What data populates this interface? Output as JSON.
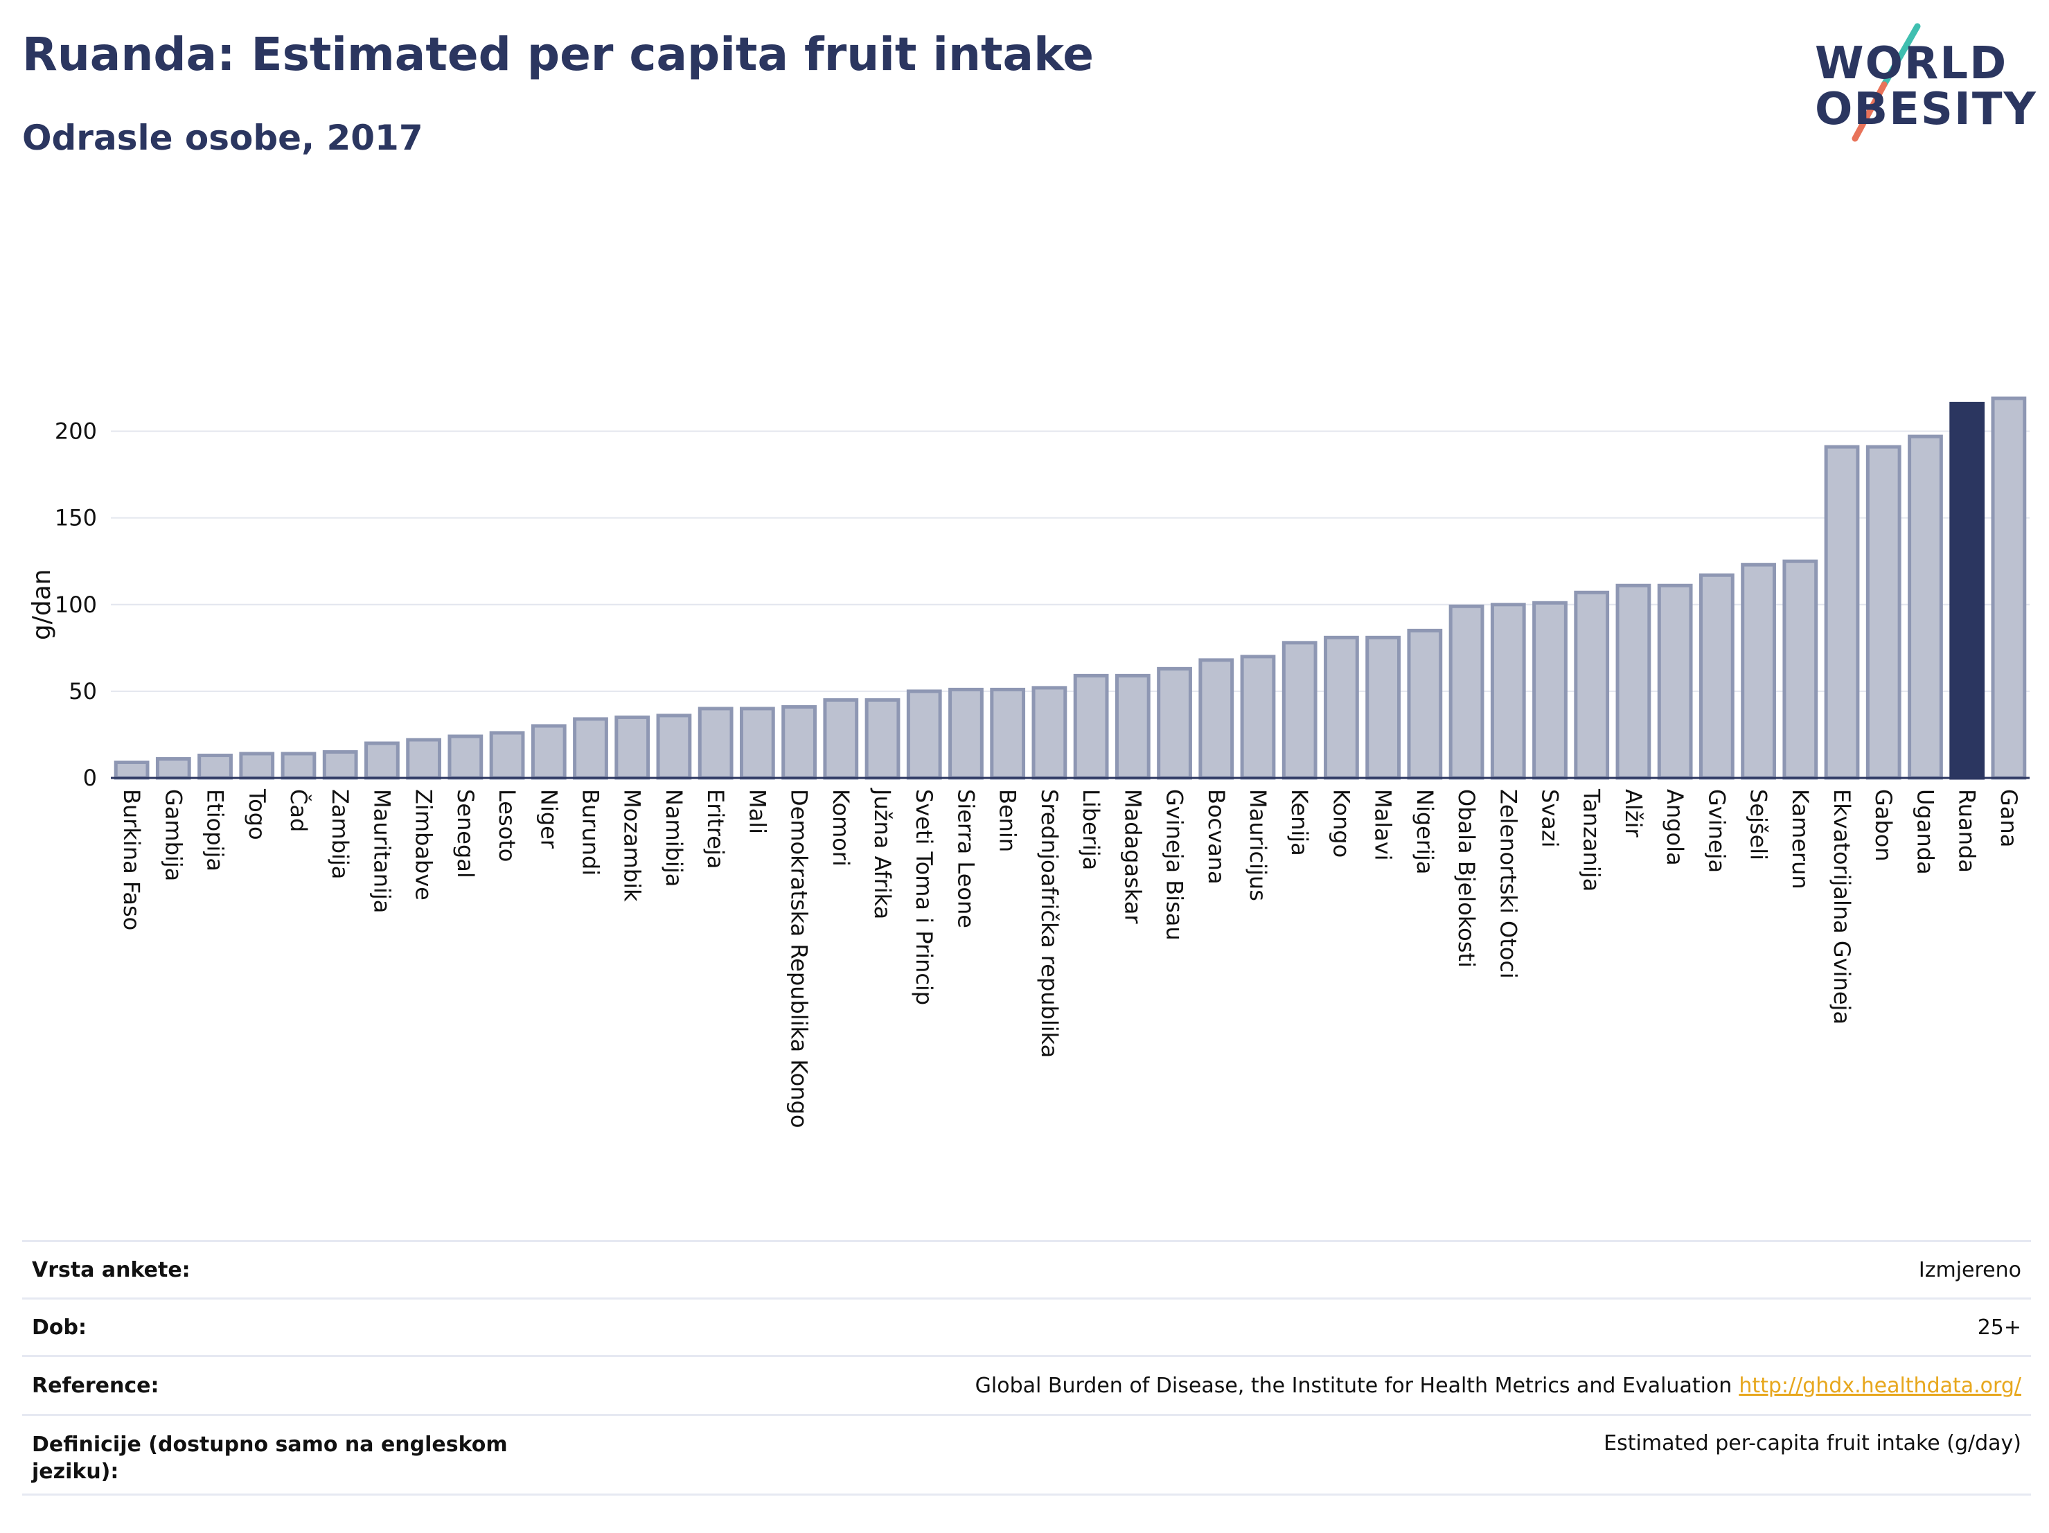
{
  "header": {
    "title": "Ruanda: Estimated per capita fruit intake",
    "subtitle": "Odrasle osobe, 2017"
  },
  "logo": {
    "line1": "WORLD",
    "line2": "OBESITY",
    "colors": {
      "text": "#2b3660",
      "slash_top": "#3fbfb0",
      "slash_bottom": "#e8735a"
    }
  },
  "colors": {
    "bar_fill": "#bcc1d0",
    "bar_stroke": "#8e97b3",
    "highlight": "#2b3660",
    "grid": "#e3e6ee",
    "axis": "#2b3660"
  },
  "chart_data": {
    "type": "bar",
    "ylabel": "g/dan",
    "ylim": [
      0,
      225
    ],
    "yticks": [
      0,
      50,
      100,
      150,
      200
    ],
    "grid": true,
    "highlight_category": "Ruanda",
    "categories": [
      "Burkina Faso",
      "Gambija",
      "Etiopija",
      "Togo",
      "Čad",
      "Zambija",
      "Mauritanija",
      "Zimbabve",
      "Senegal",
      "Lesoto",
      "Niger",
      "Burundi",
      "Mozambik",
      "Namibija",
      "Eritreja",
      "Mali",
      "Demokratska Republika Kongo",
      "Komori",
      "Južna Afrika",
      "Sveti Toma i Princip",
      "Sierra Leone",
      "Benin",
      "Srednjoafrička republika",
      "Liberija",
      "Madagaskar",
      "Gvineja Bisau",
      "Bocvana",
      "Mauricijus",
      "Kenija",
      "Kongo",
      "Malavi",
      "Nigerija",
      "Obala Bjelokosti",
      "Zelenortski Otoci",
      "Svazi",
      "Tanzanija",
      "Alžir",
      "Angola",
      "Gvineja",
      "Sejšeli",
      "Kamerun",
      "Ekvatorijalna Gvineja",
      "Gabon",
      "Uganda",
      "Ruanda",
      "Gana"
    ],
    "values": [
      9,
      11,
      13,
      14,
      14,
      15,
      20,
      22,
      24,
      26,
      30,
      34,
      35,
      36,
      40,
      40,
      41,
      45,
      45,
      50,
      51,
      51,
      52,
      59,
      59,
      63,
      68,
      70,
      78,
      81,
      81,
      85,
      99,
      100,
      101,
      107,
      111,
      111,
      117,
      123,
      125,
      191,
      191,
      197,
      216,
      219
    ]
  },
  "info": {
    "rows": [
      {
        "label": "Vrsta ankete:",
        "value": "Izmjereno"
      },
      {
        "label": "Dob:",
        "value": "25+"
      },
      {
        "label": "Reference:",
        "value": "Global Burden of Disease, the Institute for Health Metrics and Evaluation",
        "link": "http://ghdx.healthdata.org/"
      },
      {
        "label": "Definicije (dostupno samo na engleskom jeziku):",
        "value": "Estimated per-capita fruit intake (g/day)"
      }
    ]
  }
}
